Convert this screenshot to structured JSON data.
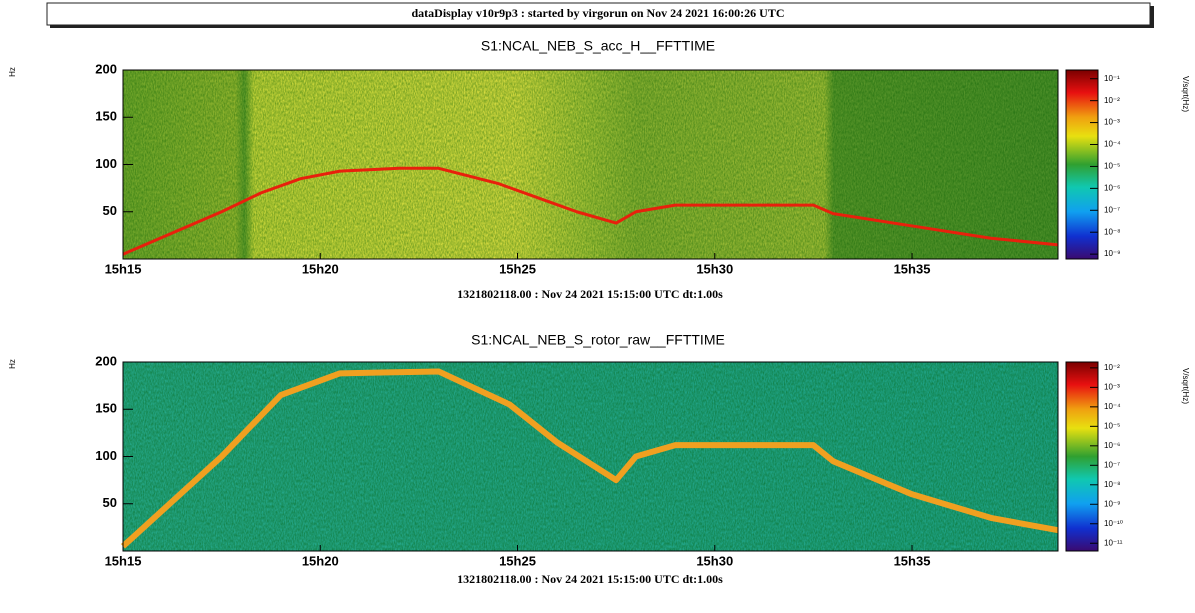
{
  "banner": "dataDisplay v10r9p3 : started by virgorun on Nov 24 2021 16:00:26 UTC",
  "chart_data": [
    {
      "type": "spectrogram",
      "title": "S1:NCAL_NEB_S_acc_H__FFTTIME",
      "footer": "1321802118.00 : Nov 24 2021 15:15:00 UTC dt:1.00s",
      "y_label": "Hz",
      "z_label": "V/sqrt(Hz)",
      "xlim": [
        915,
        938.7
      ],
      "xticks": [
        {
          "value": 915,
          "label": "15h15"
        },
        {
          "value": 920,
          "label": "15h20"
        },
        {
          "value": 925,
          "label": "15h25"
        },
        {
          "value": 930,
          "label": "15h30"
        },
        {
          "value": 935,
          "label": "15h35"
        }
      ],
      "ylim": [
        0,
        200
      ],
      "yticks": [
        50,
        100,
        150,
        200
      ],
      "log_z": true,
      "zlim": [
        6e-10,
        0.25
      ],
      "zticks": [
        {
          "value": 0.1,
          "label": "10⁻¹"
        },
        {
          "value": 0.01,
          "label": "10⁻²"
        },
        {
          "value": 0.001,
          "label": "10⁻³"
        },
        {
          "value": 0.0001,
          "label": "10⁻⁴"
        },
        {
          "value": 1e-05,
          "label": "10⁻⁵"
        },
        {
          "value": 1e-06,
          "label": "10⁻⁶"
        },
        {
          "value": 1e-07,
          "label": "10⁻⁷"
        },
        {
          "value": 1e-08,
          "label": "10⁻⁸"
        },
        {
          "value": 1e-09,
          "label": "10⁻⁹"
        }
      ],
      "x": [
        915,
        917.5,
        918.5,
        919.5,
        920.5,
        922,
        923,
        924.5,
        925.5,
        926.5,
        927.5,
        928,
        929,
        932.5,
        933,
        935,
        937,
        938.7
      ],
      "series": [
        {
          "color": "#e8200c",
          "values": [
            5,
            50,
            70,
            85,
            93,
            96,
            96,
            80,
            65,
            50,
            38,
            50,
            57,
            57,
            48,
            35,
            22,
            15
          ]
        }
      ]
    },
    {
      "type": "spectrogram",
      "title": "S1:NCAL_NEB_S_rotor_raw__FFTTIME",
      "footer": "1321802118.00 : Nov 24 2021 15:15:00 UTC dt:1.00s",
      "y_label": "Hz",
      "z_label": "V/sqrt(Hz)",
      "xlim": [
        915,
        938.7
      ],
      "xticks": [
        {
          "value": 915,
          "label": "15h15"
        },
        {
          "value": 920,
          "label": "15h20"
        },
        {
          "value": 925,
          "label": "15h25"
        },
        {
          "value": 930,
          "label": "15h30"
        },
        {
          "value": 935,
          "label": "15h35"
        }
      ],
      "ylim": [
        0,
        200
      ],
      "yticks": [
        50,
        100,
        150,
        200
      ],
      "log_z": true,
      "zlim": [
        4e-12,
        0.02
      ],
      "zticks": [
        {
          "value": 0.01,
          "label": "10⁻²"
        },
        {
          "value": 0.001,
          "label": "10⁻³"
        },
        {
          "value": 0.0001,
          "label": "10⁻⁴"
        },
        {
          "value": 1e-05,
          "label": "10⁻⁵"
        },
        {
          "value": 1e-06,
          "label": "10⁻⁶"
        },
        {
          "value": 1e-07,
          "label": "10⁻⁷"
        },
        {
          "value": 1e-08,
          "label": "10⁻⁸"
        },
        {
          "value": 1e-09,
          "label": "10⁻⁹"
        },
        {
          "value": 1e-10,
          "label": "10⁻¹⁰"
        },
        {
          "value": 1e-11,
          "label": "10⁻¹¹"
        }
      ],
      "x": [
        915,
        917.5,
        919,
        920.5,
        923,
        924.8,
        926,
        927.5,
        928,
        929,
        932.5,
        933,
        935,
        937,
        938.7
      ],
      "series": [
        {
          "color": "#f0a020",
          "values": [
            5,
            100,
            165,
            188,
            190,
            155,
            115,
            75,
            100,
            112,
            112,
            95,
            60,
            35,
            22
          ]
        }
      ]
    }
  ]
}
